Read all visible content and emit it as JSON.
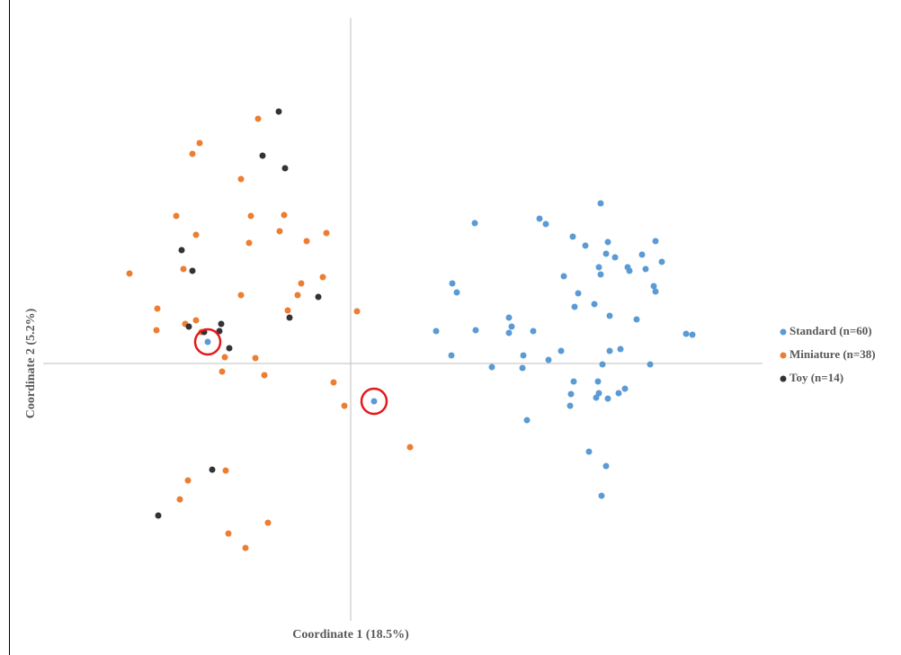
{
  "chart_data": {
    "type": "scatter",
    "x_label": "Coordinate 1 (18.5%)",
    "y_label": "Coordinate 2 (5.2%)",
    "xlim": [
      -3.42,
      4.58
    ],
    "ylim": [
      -2.86,
      3.84
    ],
    "legend": "right",
    "series": [
      {
        "name": "Standard (n=60)",
        "color": "#5b9bd5",
        "x": [
          1.38,
          2.1,
          2.17,
          2.78,
          2.47,
          2.61,
          2.86,
          2.84,
          2.94,
          3.24,
          3.39,
          3.46,
          2.76,
          2.78,
          3.08,
          3.1,
          3.28,
          2.37,
          1.13,
          1.18,
          2.53,
          2.49,
          2.71,
          3.37,
          3.39,
          2.88,
          3.18,
          1.76,
          1.79,
          1.76,
          1.39,
          0.95,
          2.03,
          3.73,
          3.8,
          1.12,
          1.92,
          2.34,
          2.88,
          3.0,
          2.2,
          1.57,
          1.91,
          2.8,
          3.33,
          2.48,
          2.75,
          2.45,
          2.76,
          2.73,
          2.86,
          2.98,
          3.05,
          2.44,
          1.96,
          2.65,
          2.84,
          2.79,
          -1.59,
          0.26
        ],
        "values": [
          1.56,
          1.61,
          1.55,
          1.78,
          1.41,
          1.31,
          1.35,
          1.22,
          1.18,
          1.21,
          1.36,
          1.13,
          1.07,
          0.99,
          1.07,
          1.03,
          1.05,
          0.97,
          0.89,
          0.79,
          0.78,
          0.63,
          0.66,
          0.86,
          0.8,
          0.53,
          0.49,
          0.51,
          0.41,
          0.34,
          0.37,
          0.36,
          0.36,
          0.33,
          0.32,
          0.09,
          0.09,
          0.14,
          0.14,
          0.16,
          0.04,
          -0.04,
          -0.05,
          -0.01,
          -0.01,
          -0.2,
          -0.2,
          -0.34,
          -0.33,
          -0.38,
          -0.39,
          -0.33,
          -0.28,
          -0.47,
          -0.63,
          -0.98,
          -1.14,
          -1.47,
          0.24,
          -0.42
        ]
      },
      {
        "name": "Miniature (n=38)",
        "color": "#ed7d31",
        "x": [
          -1.03,
          -1.68,
          -1.76,
          -1.22,
          -1.94,
          -1.11,
          -0.74,
          -1.72,
          -0.79,
          -1.13,
          -0.49,
          -0.27,
          -2.46,
          -1.86,
          -0.31,
          -0.55,
          -1.22,
          -0.59,
          -2.15,
          -0.7,
          0.07,
          -1.84,
          -1.72,
          -2.16,
          -1.4,
          -1.06,
          -1.43,
          -0.96,
          -0.19,
          -0.07,
          0.66,
          -1.81,
          -1.39,
          -1.9,
          -1.36,
          -0.92,
          -1.17,
          -1.66
        ],
        "values": [
          2.72,
          2.45,
          2.33,
          2.05,
          1.64,
          1.64,
          1.65,
          1.43,
          1.47,
          1.34,
          1.36,
          1.45,
          1.0,
          1.05,
          0.96,
          0.89,
          0.76,
          0.76,
          0.61,
          0.59,
          0.58,
          0.44,
          0.48,
          0.37,
          0.07,
          0.06,
          -0.09,
          -0.13,
          -0.21,
          -0.47,
          -0.93,
          -1.3,
          -1.19,
          -1.51,
          -1.89,
          -1.77,
          -2.05,
          0.35
        ]
      },
      {
        "name": "Toy (n=14)",
        "color": "#333333",
        "x": [
          -0.8,
          -0.98,
          -0.73,
          -1.88,
          -1.76,
          -0.36,
          -0.68,
          -1.44,
          -1.8,
          -1.46,
          -1.63,
          -1.35,
          -1.54,
          -2.14
        ],
        "values": [
          2.8,
          2.31,
          2.17,
          1.26,
          1.03,
          0.74,
          0.51,
          0.44,
          0.41,
          0.36,
          0.35,
          0.17,
          -1.18,
          -1.69
        ]
      }
    ]
  }
}
